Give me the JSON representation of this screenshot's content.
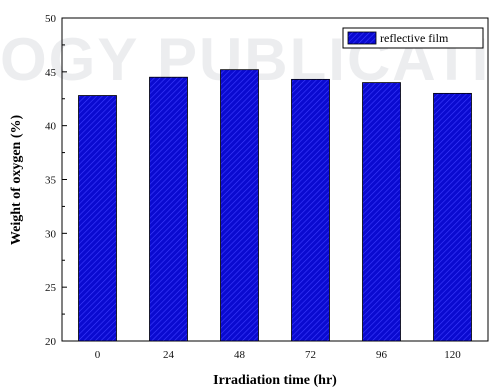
{
  "watermark": {
    "text": "OGY PUBLICATIONS"
  },
  "chart_data": {
    "type": "bar",
    "categories": [
      "0",
      "24",
      "48",
      "72",
      "96",
      "120"
    ],
    "values": [
      42.8,
      44.5,
      45.2,
      44.3,
      44.0,
      43.0
    ],
    "xlabel": "Irradiation time (hr)",
    "ylabel": "Weight of oxygen (%)",
    "ylim": [
      20,
      50
    ],
    "yticks": [
      20,
      25,
      30,
      35,
      40,
      45,
      50
    ],
    "legend": {
      "entries": [
        "reflective film"
      ],
      "position": "top-right"
    },
    "series": [
      {
        "name": "reflective film",
        "values": [
          42.8,
          44.5,
          45.2,
          44.3,
          44.0,
          43.0
        ]
      }
    ],
    "colors": {
      "bar_fill": "#0a0ad0",
      "bar_hatch": "#3c3cff",
      "axis": "#000000"
    },
    "grid": false
  }
}
